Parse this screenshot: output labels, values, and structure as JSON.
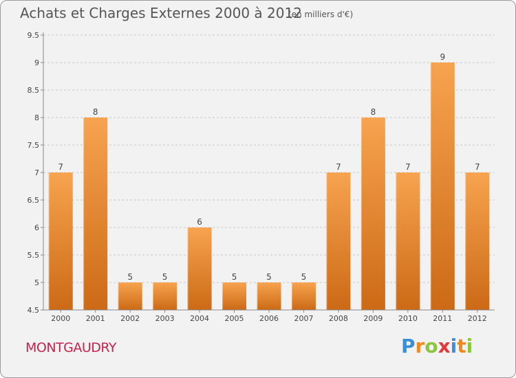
{
  "header": {
    "title": "Achats et Charges Externes 2000 à 2012",
    "subtitle": "(en milliers d'€)"
  },
  "commune": "MONTGAUDRY",
  "logo": {
    "text": "Proxiti",
    "letters": [
      {
        "ch": "P",
        "color": "#3a8fd6"
      },
      {
        "ch": "r",
        "color": "#f08a1c"
      },
      {
        "ch": "o",
        "color": "#8cc63e"
      },
      {
        "ch": "x",
        "color": "#e23a3a"
      },
      {
        "ch": "i",
        "color": "#3a8fd6"
      },
      {
        "ch": "t",
        "color": "#f08a1c"
      },
      {
        "ch": "i",
        "color": "#8cc63e"
      }
    ]
  },
  "colors": {
    "bar_top": "#f7a34f",
    "bar_bottom": "#cc6a16",
    "grid": "#c8c8c8",
    "axis_text": "#444444"
  },
  "chart_data": {
    "type": "bar",
    "categories": [
      "2000",
      "2001",
      "2002",
      "2003",
      "2004",
      "2005",
      "2006",
      "2007",
      "2008",
      "2009",
      "2010",
      "2011",
      "2012"
    ],
    "values": [
      7,
      8,
      5,
      5,
      6,
      5,
      5,
      5,
      7,
      8,
      7,
      9,
      7
    ],
    "ylim": [
      4.5,
      9.5
    ],
    "yticks": [
      "4.5",
      "5",
      "5.5",
      "6",
      "6.5",
      "7",
      "7.5",
      "8",
      "8.5",
      "9",
      "9.5"
    ],
    "grid": "horizontal dashed",
    "legend": "none"
  }
}
